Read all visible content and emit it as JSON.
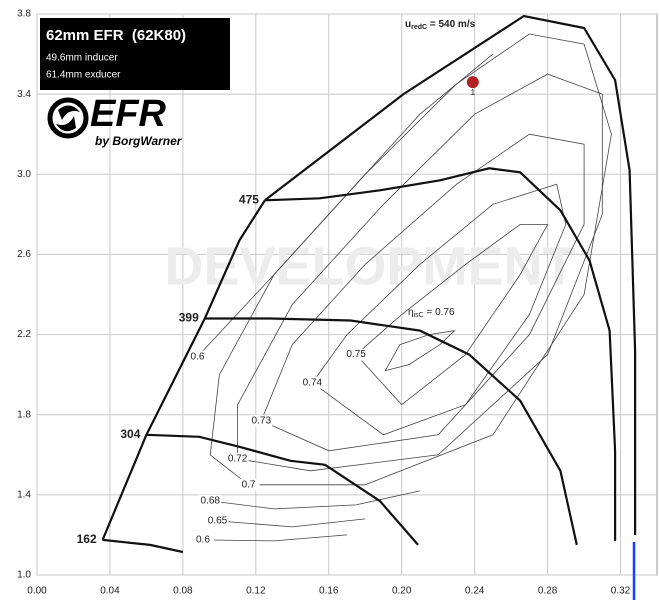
{
  "chart_data": {
    "type": "line",
    "title": "62mm EFR  (62K80)",
    "subtitle": [
      "49.6mm inducer",
      "61.4mm exducer"
    ],
    "logo": "EFR",
    "logo_sub": "by BorgWarner",
    "watermark": "DEVELOPMENT",
    "xlim": [
      0,
      0.34
    ],
    "ylim": [
      1.0,
      3.8
    ],
    "xticks": [
      {
        "value": 0,
        "label": "0.00"
      },
      {
        "value": 0.04,
        "label": "0.04"
      },
      {
        "value": 0.08,
        "label": "0.08"
      },
      {
        "value": 0.12,
        "label": "0.12"
      },
      {
        "value": 0.16,
        "label": "0.16"
      },
      {
        "value": 0.2,
        "label": "0.20"
      },
      {
        "value": 0.24,
        "label": "0.24"
      },
      {
        "value": 0.28,
        "label": "0.28"
      },
      {
        "value": 0.32,
        "label": "0.32"
      }
    ],
    "yticks": [
      {
        "value": 1.0,
        "label": "1.0"
      },
      1.4,
      1.8,
      2.2,
      2.6,
      {
        "value": 3.0,
        "label": "3.0"
      },
      3.4,
      3.8
    ],
    "grid": true,
    "series": [
      {
        "name": "162",
        "color": "#111111",
        "x": [
          0.036,
          0.062,
          0.08
        ],
        "y": [
          1.175,
          1.15,
          1.115
        ]
      },
      {
        "name": "304",
        "color": "#111111",
        "x": [
          0.06,
          0.089,
          0.111,
          0.139,
          0.158,
          0.188,
          0.209
        ],
        "y": [
          1.7,
          1.69,
          1.64,
          1.57,
          1.55,
          1.37,
          1.15
        ]
      },
      {
        "name": "399",
        "color": "#111111",
        "x": [
          0.092,
          0.128,
          0.172,
          0.21,
          0.237,
          0.265,
          0.287,
          0.296
        ],
        "y": [
          2.28,
          2.28,
          2.27,
          2.22,
          2.1,
          1.87,
          1.52,
          1.15
        ]
      },
      {
        "name": "475",
        "color": "#111111",
        "x": [
          0.125,
          0.155,
          0.188,
          0.221,
          0.248,
          0.265,
          0.287,
          0.303,
          0.314,
          0.317,
          0.317
        ],
        "y": [
          2.87,
          2.88,
          2.92,
          2.97,
          3.03,
          3.01,
          2.82,
          2.57,
          2.22,
          1.62,
          1.17
        ]
      },
      {
        "color": "#111111",
        "x": [
          0.125,
          0.201,
          0.267,
          0.3,
          0.317,
          0.325,
          0.328,
          0.328
        ],
        "y": [
          2.87,
          3.4,
          3.79,
          3.73,
          3.47,
          3.02,
          2.12,
          1.2
        ]
      },
      {
        "color": "#111111",
        "x": [
          0.036,
          0.06,
          0.092,
          0.111,
          0.125
        ],
        "y": [
          1.175,
          1.7,
          2.28,
          2.67,
          2.87
        ]
      }
    ],
    "efficiency_contours": [
      {
        "x": [
          0.199,
          0.215,
          0.229,
          0.221,
          0.204,
          0.191,
          0.199
        ],
        "y": [
          2.15,
          2.2,
          2.22,
          2.15,
          2.05,
          2.02,
          2.15
        ]
      },
      {
        "label": "0.75",
        "x": [
          0.175,
          0.2,
          0.235,
          0.265,
          0.28,
          0.265,
          0.235,
          0.2,
          0.175
        ],
        "y": [
          2.1,
          2.3,
          2.55,
          2.75,
          2.75,
          2.5,
          2.1,
          1.85,
          2.1
        ]
      },
      {
        "label": "0.74",
        "x": [
          0.151,
          0.17,
          0.21,
          0.25,
          0.285,
          0.29,
          0.27,
          0.235,
          0.19,
          0.151
        ],
        "y": [
          1.96,
          2.2,
          2.55,
          2.85,
          2.95,
          2.75,
          2.3,
          1.85,
          1.7,
          1.96
        ]
      },
      {
        "label": "0.73",
        "x": [
          0.123,
          0.14,
          0.18,
          0.23,
          0.27,
          0.3,
          0.3,
          0.27,
          0.22,
          0.16,
          0.123
        ],
        "y": [
          1.77,
          2.15,
          2.55,
          2.95,
          3.2,
          3.15,
          2.75,
          2.2,
          1.7,
          1.62,
          1.77
        ]
      },
      {
        "label": "0.72",
        "x": [
          0.11,
          0.11,
          0.14,
          0.19,
          0.24,
          0.28,
          0.31,
          0.31,
          0.28,
          0.22,
          0.15,
          0.11
        ],
        "y": [
          1.58,
          1.85,
          2.35,
          2.85,
          3.3,
          3.5,
          3.4,
          2.8,
          2.1,
          1.6,
          1.52,
          1.58
        ]
      },
      {
        "label": "0.7",
        "x": [
          0.116,
          0.095,
          0.1,
          0.13,
          0.18,
          0.23,
          0.27,
          0.3,
          0.315,
          0.3,
          0.25,
          0.18,
          0.116
        ],
        "y": [
          1.45,
          1.6,
          2.0,
          2.5,
          3.0,
          3.45,
          3.7,
          3.65,
          3.2,
          2.4,
          1.7,
          1.45,
          1.45
        ]
      },
      {
        "label": "0.68",
        "x": [
          0.095,
          0.13,
          0.175,
          0.21
        ],
        "y": [
          1.37,
          1.33,
          1.35,
          1.42
        ]
      },
      {
        "label": "0.65",
        "x": [
          0.099,
          0.14,
          0.18
        ],
        "y": [
          1.27,
          1.24,
          1.28
        ]
      },
      {
        "label": "0.6",
        "x": [
          0.091,
          0.13,
          0.17
        ],
        "y": [
          1.175,
          1.17,
          1.2
        ]
      },
      {
        "label": "0.6",
        "x": [
          0.088,
          0.13,
          0.17,
          0.21,
          0.25
        ],
        "y": [
          2.09,
          2.5,
          2.9,
          3.3,
          3.6
        ]
      }
    ],
    "annotations": [
      {
        "prefix": "u",
        "sub": "redC",
        "suffix": " = 540 m/s"
      },
      {
        "prefix": "η",
        "sub": "isC",
        "suffix": " = 0.76"
      }
    ],
    "points": [
      {
        "label": "1",
        "x": 0.239,
        "y": 3.46,
        "color": "#b22222"
      }
    ]
  }
}
